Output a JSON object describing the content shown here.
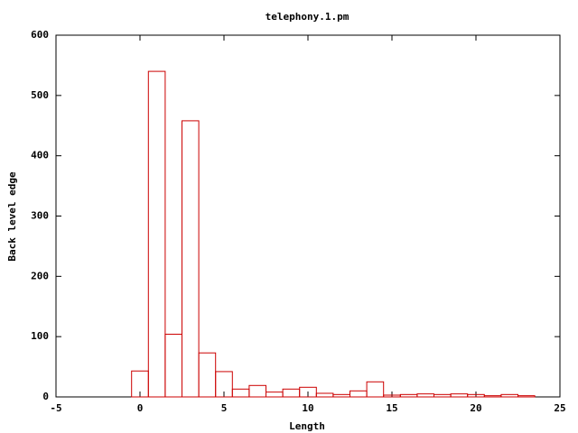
{
  "chart_data": {
    "type": "histogram",
    "title": "telephony.1.pm",
    "x_label": "Length",
    "y_label": "Back level edge",
    "bins": [
      -0.5,
      0.5,
      1.5,
      2.5,
      3.5,
      4.5,
      5.5,
      6.5,
      7.5,
      8.5,
      9.5,
      10.5,
      11.5,
      12.5,
      13.5,
      14.5,
      15.5,
      16.5,
      17.5,
      18.5,
      19.5,
      20.5,
      21.5,
      22.5,
      23.5
    ],
    "values": [
      43,
      540,
      104,
      458,
      73,
      42,
      13,
      19,
      8,
      13,
      16,
      6,
      4,
      10,
      25,
      3,
      4,
      5,
      4,
      5,
      4,
      2,
      4,
      2
    ],
    "color": "#cc0000",
    "xlim": [
      -5,
      25
    ],
    "xticks": [
      -5,
      0,
      5,
      10,
      15,
      20,
      25
    ],
    "ylim": [
      0,
      600
    ],
    "yticks": [
      0,
      100,
      200,
      300,
      400,
      500,
      600
    ]
  }
}
